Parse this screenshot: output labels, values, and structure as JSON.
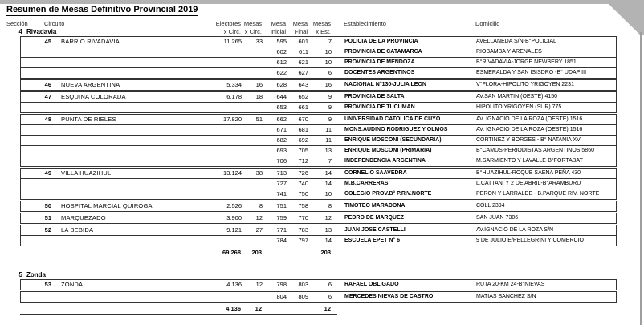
{
  "title": "Resumen de Mesas Definitivo Provincial 2019",
  "colors": {
    "page_background": "#ffffff",
    "chrome_gray": "#b3b3b3",
    "border": "#333333",
    "text": "#000000"
  },
  "columns": {
    "seccion": "Sección",
    "circuito": "Circuito",
    "electores_line1": "Electores",
    "electores_line2": "x Circ.",
    "mesas_line1": "Mesas",
    "mesas_line2": "x Circ.",
    "mesa_inicial_line1": "Mesa",
    "mesa_inicial_line2": "Inicial",
    "mesa_final_line1": "Mesa",
    "mesa_final_line2": "Final",
    "mesas_est_line1": "Mesas",
    "mesas_est_line2": "x Est.",
    "establecimiento": "Establecimiento",
    "domicilio": "Domicilio"
  },
  "sections": [
    {
      "number": "4",
      "name": "Rivadavia",
      "groups": [
        {
          "rows": [
            {
              "circuit_number": "45",
              "circuit_name": "BARRIO RIVADAVIA",
              "electores": "11.265",
              "mesas": "33",
              "mesa_inicial": "595",
              "mesa_final": "601",
              "mesas_est": "7",
              "establecimiento": "POLICIA DE LA PROVINCIA",
              "domicilio": "AVELLANEDA S/N-B°POLICIAL"
            },
            {
              "circuit_number": "",
              "circuit_name": "",
              "electores": "",
              "mesas": "",
              "mesa_inicial": "602",
              "mesa_final": "611",
              "mesas_est": "10",
              "establecimiento": "PROVINCIA DE CATAMARCA",
              "domicilio": "RIOBAMBA Y ARENALES"
            },
            {
              "circuit_number": "",
              "circuit_name": "",
              "electores": "",
              "mesas": "",
              "mesa_inicial": "612",
              "mesa_final": "621",
              "mesas_est": "10",
              "establecimiento": "PROVINCIA DE MENDOZA",
              "domicilio": "B°RIVADAVIA-JORGE NEWBERY 1851"
            },
            {
              "circuit_number": "",
              "circuit_name": "",
              "electores": "",
              "mesas": "",
              "mesa_inicial": "622",
              "mesa_final": "627",
              "mesas_est": "6",
              "establecimiento": "DOCENTES ARGENTINOS",
              "domicilio": "ESMERALDA Y SAN ISISDRO -B° UDAP III"
            }
          ]
        },
        {
          "rows": [
            {
              "circuit_number": "46",
              "circuit_name": "NUEVA ARGENTINA",
              "electores": "5.334",
              "mesas": "16",
              "mesa_inicial": "628",
              "mesa_final": "643",
              "mesas_est": "16",
              "establecimiento": "NACIONAL N°130-JULIA LEON",
              "domicilio": "V°FLORA-HIPOLITO YRIGOYEN 2231"
            }
          ]
        },
        {
          "rows": [
            {
              "circuit_number": "47",
              "circuit_name": "ESQUINA COLORADA",
              "electores": "6.178",
              "mesas": "18",
              "mesa_inicial": "644",
              "mesa_final": "652",
              "mesas_est": "9",
              "establecimiento": "PROVINCIA DE SALTA",
              "domicilio": "AV.SAN MARTIN (OESTE) 4150"
            },
            {
              "circuit_number": "",
              "circuit_name": "",
              "electores": "",
              "mesas": "",
              "mesa_inicial": "653",
              "mesa_final": "661",
              "mesas_est": "9",
              "establecimiento": "PROVINCIA DE TUCUMAN",
              "domicilio": "HIPOLITO YRIGOYEN (SUR) 775"
            }
          ]
        },
        {
          "rows": [
            {
              "circuit_number": "48",
              "circuit_name": "PUNTA DE RIELES",
              "electores": "17.820",
              "mesas": "51",
              "mesa_inicial": "662",
              "mesa_final": "670",
              "mesas_est": "9",
              "establecimiento": "UNIVERSIDAD CATOLICA DE CUYO",
              "domicilio": "AV. IGNACIO DE LA ROZA (OESTE) 1516"
            },
            {
              "circuit_number": "",
              "circuit_name": "",
              "electores": "",
              "mesas": "",
              "mesa_inicial": "671",
              "mesa_final": "681",
              "mesas_est": "11",
              "establecimiento": "MONS.AUDINO RODRIGUEZ Y OLMOS",
              "domicilio": "AV. IGNACIO DE LA ROZA (OESTE) 1516"
            },
            {
              "circuit_number": "",
              "circuit_name": "",
              "electores": "",
              "mesas": "",
              "mesa_inicial": "682",
              "mesa_final": "692",
              "mesas_est": "11",
              "establecimiento": "ENRIQUE MOSCONI (SECUNDARIA)",
              "domicilio": "CORTINEZ Y BORGES - B° NATANIA XV"
            },
            {
              "circuit_number": "",
              "circuit_name": "",
              "electores": "",
              "mesas": "",
              "mesa_inicial": "693",
              "mesa_final": "705",
              "mesas_est": "13",
              "establecimiento": "ENRIQUE MOSCONI (PRIMARIA)",
              "domicilio": "B°CAMUS-PERIODISTAS ARGENTINOS 5860"
            },
            {
              "circuit_number": "",
              "circuit_name": "",
              "electores": "",
              "mesas": "",
              "mesa_inicial": "706",
              "mesa_final": "712",
              "mesas_est": "7",
              "establecimiento": "INDEPENDENCIA ARGENTINA",
              "domicilio": "M.SARMIENTO Y LAVALLE-B°FORTABAT"
            }
          ]
        },
        {
          "rows": [
            {
              "circuit_number": "49",
              "circuit_name": "VILLA HUAZIHUL",
              "electores": "13.124",
              "mesas": "38",
              "mesa_inicial": "713",
              "mesa_final": "726",
              "mesas_est": "14",
              "establecimiento": "CORNELIO SAAVEDRA",
              "domicilio": "B°HUAZIHUL-ROQUE SAENA PEÑA 430"
            },
            {
              "circuit_number": "",
              "circuit_name": "",
              "electores": "",
              "mesas": "",
              "mesa_inicial": "727",
              "mesa_final": "740",
              "mesas_est": "14",
              "establecimiento": "M.B.CARRERAS",
              "domicilio": "L.CATTANI Y 2 DE ABRIL-B°ARAMBURU"
            },
            {
              "circuit_number": "",
              "circuit_name": "",
              "electores": "",
              "mesas": "",
              "mesa_inicial": "741",
              "mesa_final": "750",
              "mesas_est": "10",
              "establecimiento": "COLEGIO PROV.B° P.RIV.NORTE",
              "domicilio": "PERON Y LARRALDE - B.PARQUE RIV. NORTE"
            }
          ]
        },
        {
          "rows": [
            {
              "circuit_number": "50",
              "circuit_name": "HOSPITAL MARCIAL QUIROGA",
              "electores": "2.526",
              "mesas": "8",
              "mesa_inicial": "751",
              "mesa_final": "758",
              "mesas_est": "8",
              "establecimiento": "TIMOTEO MARADONA",
              "domicilio": "COLL 2394"
            }
          ]
        },
        {
          "rows": [
            {
              "circuit_number": "51",
              "circuit_name": "MARQUEZADO",
              "electores": "3.900",
              "mesas": "12",
              "mesa_inicial": "759",
              "mesa_final": "770",
              "mesas_est": "12",
              "establecimiento": "PEDRO DE MARQUEZ",
              "domicilio": "SAN JUAN 7306"
            }
          ]
        },
        {
          "rows": [
            {
              "circuit_number": "52",
              "circuit_name": "LA BEBIDA",
              "electores": "9.121",
              "mesas": "27",
              "mesa_inicial": "771",
              "mesa_final": "783",
              "mesas_est": "13",
              "establecimiento": "JUAN JOSE CASTELLI",
              "domicilio": "AV.IGNACIO DE LA ROZA S/N"
            },
            {
              "circuit_number": "",
              "circuit_name": "",
              "electores": "",
              "mesas": "",
              "mesa_inicial": "784",
              "mesa_final": "797",
              "mesas_est": "14",
              "establecimiento": "ESCUELA EPET N° 6",
              "domicilio": "9 DE JULIO E/PELLEGRINI Y COMERCIO"
            }
          ]
        }
      ],
      "totals": {
        "electores": "69.268",
        "mesas": "203",
        "mesas_est": "203"
      }
    },
    {
      "number": "5",
      "name": "Zonda",
      "groups": [
        {
          "rows": [
            {
              "circuit_number": "53",
              "circuit_name": "ZONDA",
              "electores": "4.136",
              "mesas": "12",
              "mesa_inicial": "798",
              "mesa_final": "803",
              "mesas_est": "6",
              "establecimiento": "RAFAEL OBLIGADO",
              "domicilio": "RUTA 20-KM 24-B°NIEVAS"
            }
          ]
        },
        {
          "rows": [
            {
              "circuit_number": "",
              "circuit_name": "",
              "electores": "",
              "mesas": "",
              "mesa_inicial": "804",
              "mesa_final": "809",
              "mesas_est": "6",
              "establecimiento": "MERCEDES NIEVAS DE CASTRO",
              "domicilio": "MATIAS SANCHEZ S/N"
            }
          ]
        }
      ],
      "totals": {
        "electores": "4.136",
        "mesas": "12",
        "mesas_est": "12"
      }
    }
  ]
}
